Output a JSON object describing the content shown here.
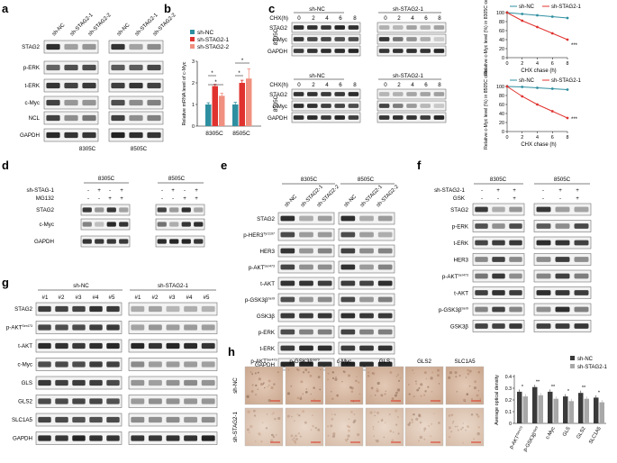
{
  "panels": {
    "a": "a",
    "b": "b",
    "c": "c",
    "d": "d",
    "e": "e",
    "f": "f",
    "g": "g",
    "h": "h"
  },
  "colors": {
    "shNC": "#2e8fa0",
    "sh1": "#e0332f",
    "sh2": "#f09080",
    "dark": "#3a3a3a",
    "grey": "#a8a8a8"
  },
  "panel_a": {
    "lanes": [
      "sh-NC",
      "sh-STAG2-1",
      "sh-STAG2-2",
      "sh-NC",
      "sh-STAG2-1",
      "sh-STAG2-2"
    ],
    "rows": [
      "STAG2",
      "p-ERK",
      "t-ERK",
      "c-Myc",
      "NCL",
      "GAPDH"
    ],
    "cells": [
      "8305C",
      "8505C"
    ]
  },
  "panel_b": {
    "ylabel": "Relative mRNA level of c-Myc",
    "legend": [
      "sh-NC",
      "sh-STAG2-1",
      "sh-STAG2-2"
    ],
    "sig": "*"
  },
  "panel_c": {
    "groups": [
      "sh-NC",
      "sh-STAG2-1"
    ],
    "chx": "CHX(h)",
    "times": [
      "0",
      "2",
      "4",
      "6",
      "8"
    ],
    "rows": [
      "STAG2",
      "c-Myc",
      "GAPDH"
    ],
    "cells": [
      "8305C",
      "8505C"
    ],
    "ylabel_top": "Relative c-Myc level (%) in 8305C cells",
    "ylabel_bottom": "Relative c-Myc level (%) in 8505C cells",
    "xlabel": "CHX chase (h)",
    "legend": [
      "sh-NC",
      "sh-STAG2-1"
    ],
    "sig": "***"
  },
  "panel_d": {
    "cells": [
      "8305C",
      "8505C"
    ],
    "conds": [
      "sh-STAG-1",
      "MG132"
    ],
    "signs": [
      [
        "-",
        "+",
        "-",
        "+",
        "-",
        "+",
        "-",
        "+"
      ],
      [
        "-",
        "-",
        "+",
        "+",
        "-",
        "-",
        "+",
        "+"
      ]
    ],
    "rows": [
      "STAG2",
      "c-Myc",
      "GAPDH"
    ]
  },
  "panel_e": {
    "cells": [
      "8305C",
      "8505C"
    ],
    "lanes": [
      "sh-NC",
      "sh-STAG2-1",
      "sh-STAG2-2",
      "sh-NC",
      "sh-STAG2-1",
      "sh-STAG2-2"
    ],
    "rows": [
      "STAG2",
      "p-HER3",
      "HER3",
      "p-AKT",
      "t-AKT",
      "p-GSK3β",
      "GSK3β",
      "p-ERK",
      "t-ERK",
      "GAPDH"
    ],
    "sups": {
      "1": "Tyr1197",
      "3": "Ser473",
      "5": "Ser9"
    }
  },
  "panel_f": {
    "cells": [
      "8305C",
      "8505C"
    ],
    "conds": [
      "sh-STAG2-1",
      "GSK"
    ],
    "signs": [
      [
        "-",
        "+",
        "+",
        "-",
        "+",
        "+"
      ],
      [
        "-",
        "-",
        "+",
        "-",
        "-",
        "+"
      ]
    ],
    "rows": [
      "STAG2",
      "p-ERK",
      "t-ERK",
      "HER3",
      "p-AKT",
      "t-AKT",
      "p-GSK3β",
      "GSK3β"
    ],
    "sups": {
      "4": "Ser473",
      "6": "Ser9"
    }
  },
  "panel_g": {
    "groups": [
      "sh-NC",
      "sh-STAG2-1"
    ],
    "lanes": [
      "#1",
      "#2",
      "#3",
      "#4",
      "#5",
      "#1",
      "#2",
      "#3",
      "#4",
      "#5"
    ],
    "rows": [
      "STAG2",
      "p-AKT",
      "t-AKT",
      "c-Myc",
      "GLS",
      "GLS2",
      "SLC1A5",
      "GAPDH"
    ],
    "sups": {
      "1": "Ser473"
    }
  },
  "panel_h": {
    "cols": [
      "p-AKT",
      "p-GSK3β",
      "c-Myc",
      "GLS",
      "GLS2",
      "SLC1A5"
    ],
    "col_sups": [
      "Ser473",
      "Ser9",
      "",
      "",
      "",
      ""
    ],
    "rows": [
      "sh-NC",
      "sh-STAG2-1"
    ],
    "legend": [
      "sh-NC",
      "sh-STAG2-1"
    ]
  },
  "chart_data": [
    {
      "type": "bar",
      "panel": "b",
      "categories": [
        "8305C",
        "8505C"
      ],
      "series": [
        {
          "name": "sh-NC",
          "values": [
            1.0,
            1.0
          ]
        },
        {
          "name": "sh-STAG2-1",
          "values": [
            1.85,
            2.0
          ]
        },
        {
          "name": "sh-STAG2-2",
          "values": [
            1.4,
            2.2
          ]
        }
      ],
      "errors": [
        [
          0.08,
          0.1
        ],
        [
          0.08,
          0.12
        ],
        [
          0.12,
          0.45
        ]
      ],
      "ylabel": "Relative mRNA level of c-Myc",
      "ylim": [
        0,
        3
      ],
      "yticks": [
        0,
        1,
        2,
        3
      ],
      "significance": "*"
    },
    {
      "type": "line",
      "panel": "c-8305C",
      "x": [
        0,
        2,
        4,
        6,
        8
      ],
      "series": [
        {
          "name": "sh-NC",
          "values": [
            100,
            97,
            94,
            91,
            88
          ]
        },
        {
          "name": "sh-STAG2-1",
          "values": [
            100,
            82,
            68,
            54,
            40
          ]
        }
      ],
      "xlabel": "CHX chase (h)",
      "ylabel": "Relative c-Myc level (%) in 8305C cells",
      "xlim": [
        0,
        8
      ],
      "ylim": [
        0,
        100
      ],
      "xticks": [
        0,
        2,
        4,
        6,
        8
      ],
      "yticks": [
        0,
        20,
        40,
        60,
        80,
        100
      ],
      "significance": "***"
    },
    {
      "type": "line",
      "panel": "c-8505C",
      "x": [
        0,
        2,
        4,
        6,
        8
      ],
      "series": [
        {
          "name": "sh-NC",
          "values": [
            100,
            99,
            97,
            95,
            93
          ]
        },
        {
          "name": "sh-STAG2-1",
          "values": [
            100,
            78,
            60,
            45,
            30
          ]
        }
      ],
      "xlabel": "CHX chase (h)",
      "ylabel": "Relative c-Myc level (%) in 8505C cells",
      "xlim": [
        0,
        8
      ],
      "ylim": [
        0,
        100
      ],
      "xticks": [
        0,
        2,
        4,
        6,
        8
      ],
      "yticks": [
        0,
        20,
        40,
        60,
        80,
        100
      ],
      "significance": "***"
    },
    {
      "type": "bar",
      "panel": "h",
      "categories": [
        "p-AKT",
        "p-GSK3β",
        "c-Myc",
        "GLS",
        "GLS2",
        "SLC1A5"
      ],
      "category_sups": [
        "Ser473",
        "Ser9",
        "",
        "",
        "",
        ""
      ],
      "series": [
        {
          "name": "sh-NC",
          "values": [
            0.27,
            0.31,
            0.27,
            0.23,
            0.26,
            0.22
          ]
        },
        {
          "name": "sh-STAG2-1",
          "values": [
            0.23,
            0.24,
            0.21,
            0.19,
            0.21,
            0.18
          ]
        }
      ],
      "ylabel": "Average optical density",
      "ylim": [
        0,
        0.4
      ],
      "yticks": [
        0.0,
        0.1,
        0.2,
        0.3,
        0.4
      ],
      "significance": [
        "*",
        "**",
        "**",
        "*",
        "**",
        "*"
      ]
    }
  ]
}
